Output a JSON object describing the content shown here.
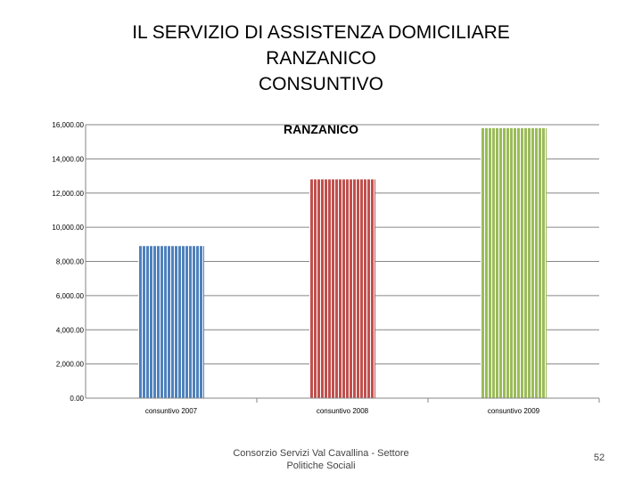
{
  "slide": {
    "title_lines": [
      "IL SERVIZIO DI ASSISTENZA DOMICILIARE",
      "RANZANICO",
      "CONSUNTIVO"
    ],
    "footer_lines": [
      "Consorzio Servizi Val Cavallina - Settore",
      "Politiche Sociali"
    ],
    "page_number": "52"
  },
  "chart_data": {
    "type": "bar",
    "title": "RANZANICO",
    "xlabel": "",
    "ylabel": "",
    "categories": [
      "consuntivo 2007",
      "consuntivo 2008",
      "consuntivo 2009"
    ],
    "values": [
      8900,
      12800,
      15800
    ],
    "ylim": [
      0,
      16000
    ],
    "yticks": [
      0,
      2000,
      4000,
      6000,
      8000,
      10000,
      12000,
      14000,
      16000
    ],
    "ytick_labels": [
      "0.00",
      "2,000.00",
      "4,000.00",
      "6,000.00",
      "8,000.00",
      "10,000.00",
      "12,000.00",
      "14,000.00",
      "16,000.00"
    ],
    "grid": true,
    "legend": "none",
    "colors": [
      "#4f81bd",
      "#c0504d",
      "#9bbb59"
    ]
  }
}
